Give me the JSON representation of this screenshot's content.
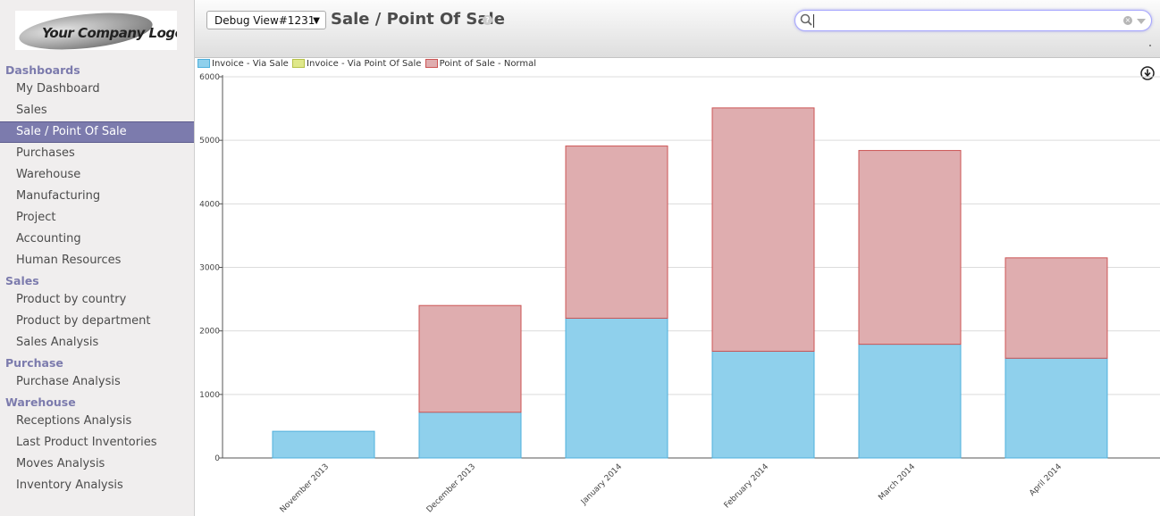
{
  "logo": {
    "text": "Your Company Logo"
  },
  "sidebar": {
    "sections": [
      {
        "title": "Dashboards",
        "items": [
          "My Dashboard",
          "Sales",
          "Sale / Point Of Sale",
          "Purchases",
          "Warehouse",
          "Manufacturing",
          "Project",
          "Accounting",
          "Human Resources"
        ]
      },
      {
        "title": "Sales",
        "items": [
          "Product by country",
          "Product by department",
          "Sales Analysis"
        ]
      },
      {
        "title": "Purchase",
        "items": [
          "Purchase Analysis"
        ]
      },
      {
        "title": "Warehouse",
        "items": [
          "Receptions Analysis",
          "Last Product Inventories",
          "Moves Analysis",
          "Inventory Analysis"
        ]
      }
    ],
    "active_item": "Sale / Point Of Sale"
  },
  "header": {
    "view_select": "Debug View#1231",
    "title": "Sale / Point Of Sale",
    "help": "?",
    "search_value": ""
  },
  "chart_data": {
    "type": "bar",
    "stacked": true,
    "categories": [
      "November 2013",
      "December 2013",
      "January 2014",
      "February 2014",
      "March 2014",
      "April 2014"
    ],
    "series": [
      {
        "name": "Invoice - Via Sale",
        "color": "#8fd0ec",
        "stroke": "#4fb0dc",
        "values": [
          420,
          720,
          2200,
          1680,
          1790,
          1570
        ]
      },
      {
        "name": "Invoice - Via Point Of Sale",
        "color": "#dfe88a",
        "stroke": "#b6c24a",
        "values": [
          0,
          0,
          0,
          0,
          0,
          0
        ]
      },
      {
        "name": "Point of Sale - Normal",
        "color": "#dfadaf",
        "stroke": "#cc5555",
        "values": [
          0,
          1680,
          2710,
          3830,
          3050,
          1580
        ]
      }
    ],
    "yticks": [
      0,
      1000,
      2000,
      3000,
      4000,
      5000,
      6000
    ],
    "ylim": [
      0,
      6000
    ],
    "grid": true,
    "legend_position": "top-left"
  }
}
